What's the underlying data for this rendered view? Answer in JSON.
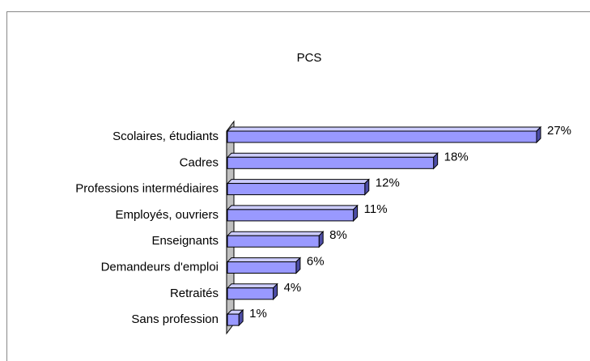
{
  "chart_data": {
    "type": "bar",
    "orientation": "horizontal",
    "title": "PCS",
    "categories": [
      "Scolaires, étudiants",
      "Cadres",
      "Professions intermédiaires",
      "Employés, ouvriers",
      "Enseignants",
      "Demandeurs d'emploi",
      "Retraités",
      "Sans profession"
    ],
    "values": [
      27,
      18,
      12,
      11,
      8,
      6,
      4,
      1
    ],
    "value_labels": [
      "27%",
      "18%",
      "12%",
      "11%",
      "8%",
      "6%",
      "4%",
      "1%"
    ],
    "color": "#9999ff"
  }
}
